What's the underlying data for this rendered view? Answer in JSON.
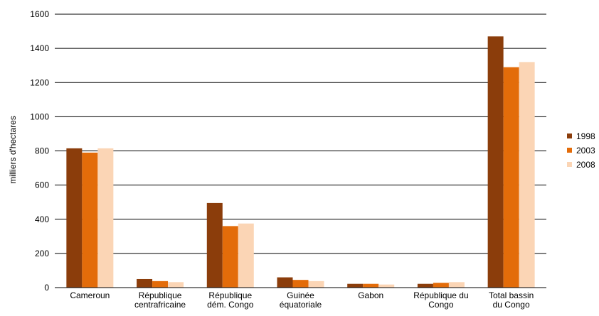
{
  "chart_data": {
    "type": "bar",
    "title": "",
    "xlabel": "",
    "ylabel": "milliers d'hectares",
    "ylim": [
      0,
      1600
    ],
    "yticks": [
      0,
      200,
      400,
      600,
      800,
      1000,
      1200,
      1400,
      1600
    ],
    "grid": "horizontal",
    "legend_position": "right",
    "categories": [
      [
        "Cameroun"
      ],
      [
        "République",
        "centrafricaine"
      ],
      [
        "République",
        "dém. Congo"
      ],
      [
        "Guinée",
        "équatoriale"
      ],
      [
        "Gabon"
      ],
      [
        "République du",
        "Congo"
      ],
      [
        "Total bassin",
        "du Congo"
      ]
    ],
    "series": [
      {
        "name": "1998",
        "color": "#8B3D0B",
        "values": [
          815,
          50,
          495,
          60,
          22,
          22,
          1470
        ]
      },
      {
        "name": "2003",
        "color": "#E36C0A",
        "values": [
          790,
          38,
          360,
          45,
          22,
          28,
          1290
        ]
      },
      {
        "name": "2008",
        "color": "#FBD5B5",
        "values": [
          815,
          32,
          375,
          38,
          18,
          32,
          1320
        ]
      }
    ]
  }
}
